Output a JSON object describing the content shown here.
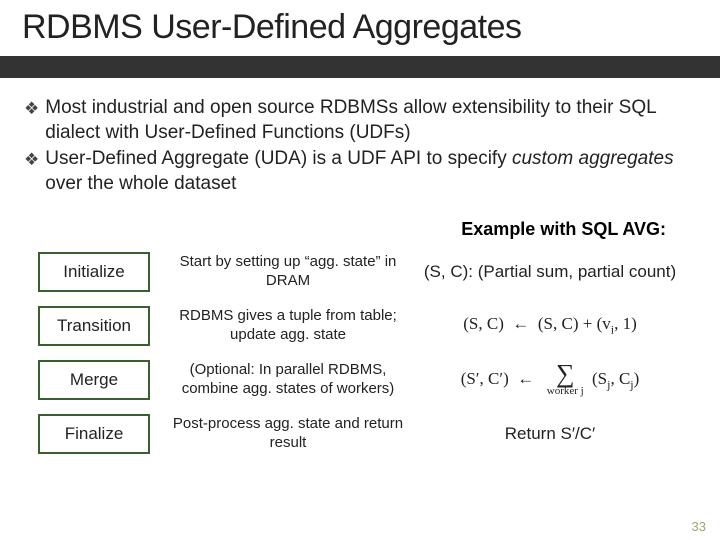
{
  "title": "RDBMS User-Defined Aggregates",
  "bullets": [
    {
      "glyph": "❖",
      "text": "Most industrial and open source RDBMSs allow extensibility to their SQL dialect with User-Defined Functions (UDFs)"
    },
    {
      "glyph": "❖",
      "text_pre": "User-Defined Aggregate (UDA) is a UDF API to specify ",
      "text_em": "custom aggregates",
      "text_post": " over the whole dataset"
    }
  ],
  "example_label": "Example with SQL AVG:",
  "stage_border_color": "#3a5f2f",
  "stages": [
    {
      "name": "Initialize",
      "desc": "Start by setting up “agg. state” in DRAM",
      "example_plain": "(S, C): (Partial sum, partial count)"
    },
    {
      "name": "Transition",
      "desc": "RDBMS gives a tuple from table; update agg. state",
      "example_math1_lhs": "(S, C)",
      "example_math1_rhs": "(S, C) + (v",
      "example_math1_sub": "i",
      "example_math1_tail": ", 1)"
    },
    {
      "name": "Merge",
      "desc": "(Optional: In parallel RDBMS, combine agg. states of workers)",
      "example_math2_lhs": "(S′, C′)",
      "example_math2_sum_bot": "worker j",
      "example_math2_rhs_pre": "(S",
      "example_math2_sub1": "j",
      "example_math2_mid": ", C",
      "example_math2_sub2": "j",
      "example_math2_tail": ")"
    },
    {
      "name": "Finalize",
      "desc": "Post-process agg. state and return result",
      "example_plain": "Return S′/C′"
    }
  ],
  "page_number": "33"
}
